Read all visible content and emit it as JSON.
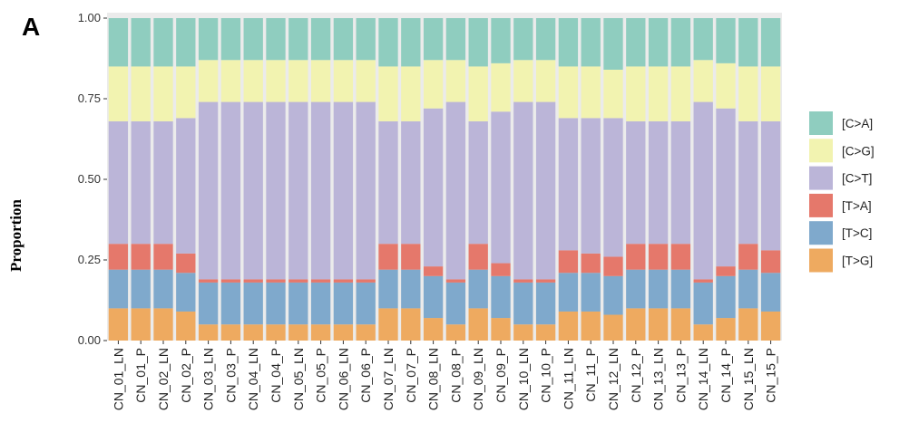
{
  "panel_label": "A",
  "chart_data": {
    "type": "bar",
    "stacked": true,
    "normalized": true,
    "ylabel": "Proportion",
    "xlabel": "",
    "ylim": [
      0,
      1
    ],
    "yticks": [
      "0.00",
      "0.25",
      "0.50",
      "0.75",
      "1.00"
    ],
    "ytick_values": [
      0,
      0.25,
      0.5,
      0.75,
      1.0
    ],
    "legend_position": "right",
    "categories": [
      "CN_01_LN",
      "CN_01_P",
      "CN_02_LN",
      "CN_02_P",
      "CN_03_LN",
      "CN_03_P",
      "CN_04_LN",
      "CN_04_P",
      "CN_05_LN",
      "CN_05_P",
      "CN_06_LN",
      "CN_06_P",
      "CN_07_LN",
      "CN_07_P",
      "CN_08_LN",
      "CN_08_P",
      "CN_09_LN",
      "CN_09_P",
      "CN_10_LN",
      "CN_10_P",
      "CN_11_LN",
      "CN_11_P",
      "CN_12_LN",
      "CN_12_P",
      "CN_13_LN",
      "CN_13_P",
      "CN_14_LN",
      "CN_14_P",
      "CN_15_LN",
      "CN_15_P"
    ],
    "series": [
      {
        "name": "[T>G]",
        "color": "#EEAA60",
        "values": [
          0.1,
          0.1,
          0.1,
          0.09,
          0.05,
          0.05,
          0.05,
          0.05,
          0.05,
          0.05,
          0.05,
          0.05,
          0.1,
          0.1,
          0.07,
          0.05,
          0.1,
          0.07,
          0.05,
          0.05,
          0.09,
          0.09,
          0.08,
          0.1,
          0.1,
          0.1,
          0.05,
          0.07,
          0.1,
          0.09
        ]
      },
      {
        "name": "[T>C]",
        "color": "#7FA9CC",
        "values": [
          0.12,
          0.12,
          0.12,
          0.12,
          0.13,
          0.13,
          0.13,
          0.13,
          0.13,
          0.13,
          0.13,
          0.13,
          0.12,
          0.12,
          0.13,
          0.13,
          0.12,
          0.13,
          0.13,
          0.13,
          0.12,
          0.12,
          0.12,
          0.12,
          0.12,
          0.12,
          0.13,
          0.13,
          0.12,
          0.12
        ]
      },
      {
        "name": "[T>A]",
        "color": "#E5786B",
        "values": [
          0.08,
          0.08,
          0.08,
          0.06,
          0.01,
          0.01,
          0.01,
          0.01,
          0.01,
          0.01,
          0.01,
          0.01,
          0.08,
          0.08,
          0.03,
          0.01,
          0.08,
          0.04,
          0.01,
          0.01,
          0.07,
          0.06,
          0.06,
          0.08,
          0.08,
          0.08,
          0.01,
          0.03,
          0.08,
          0.07
        ]
      },
      {
        "name": "[C>T]",
        "color": "#BBB5D8",
        "values": [
          0.38,
          0.38,
          0.38,
          0.42,
          0.55,
          0.55,
          0.55,
          0.55,
          0.55,
          0.55,
          0.55,
          0.55,
          0.38,
          0.38,
          0.49,
          0.55,
          0.38,
          0.47,
          0.55,
          0.55,
          0.41,
          0.42,
          0.43,
          0.38,
          0.38,
          0.38,
          0.55,
          0.49,
          0.38,
          0.4
        ]
      },
      {
        "name": "[C>G]",
        "color": "#F2F3B0",
        "values": [
          0.17,
          0.17,
          0.17,
          0.16,
          0.13,
          0.13,
          0.13,
          0.13,
          0.13,
          0.13,
          0.13,
          0.13,
          0.17,
          0.17,
          0.15,
          0.13,
          0.17,
          0.15,
          0.13,
          0.13,
          0.16,
          0.16,
          0.15,
          0.17,
          0.17,
          0.17,
          0.13,
          0.14,
          0.17,
          0.17
        ]
      },
      {
        "name": "[C>A]",
        "color": "#8FCDBF",
        "values": [
          0.15,
          0.15,
          0.15,
          0.15,
          0.13,
          0.13,
          0.13,
          0.13,
          0.13,
          0.13,
          0.13,
          0.13,
          0.15,
          0.15,
          0.13,
          0.13,
          0.15,
          0.14,
          0.13,
          0.13,
          0.15,
          0.15,
          0.16,
          0.15,
          0.15,
          0.15,
          0.13,
          0.14,
          0.15,
          0.15
        ]
      }
    ],
    "legend_order": [
      "[C>A]",
      "[C>G]",
      "[C>T]",
      "[T>A]",
      "[T>C]",
      "[T>G]"
    ],
    "panel_background": "#EBEBEB"
  }
}
